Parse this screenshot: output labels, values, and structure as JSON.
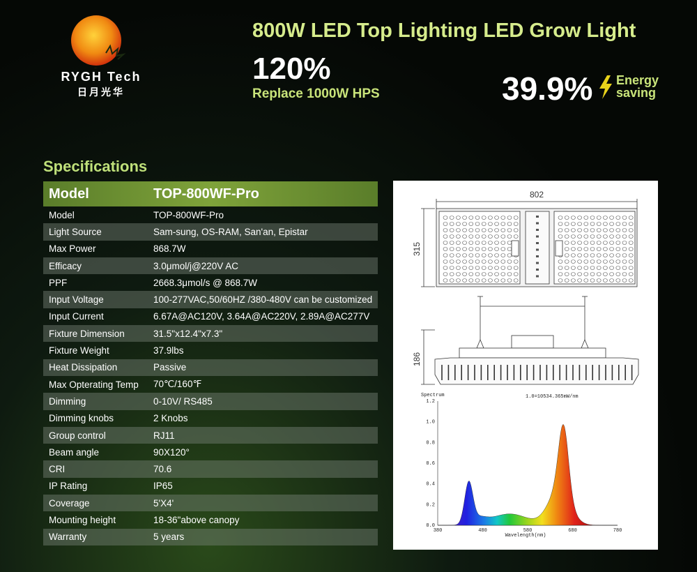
{
  "brand": {
    "name": "RYGH Tech",
    "name_cn": "日月光华"
  },
  "header": {
    "title": "800W LED Top Lighting LED Grow Light",
    "percent": "120%",
    "replace": "Replace 1000W HPS",
    "saving_value": "39.9%",
    "saving_label_1": "Energy",
    "saving_label_2": "saving"
  },
  "specs": {
    "section_title": "Specifications",
    "header": {
      "label": "Model",
      "value": "TOP-800WF-Pro"
    },
    "rows": [
      {
        "label": "Model",
        "value": "TOP-800WF-Pro"
      },
      {
        "label": "Light Source",
        "value": "Sam-sung, OS-RAM, San'an, Epistar"
      },
      {
        "label": "Max Power",
        "value": "868.7W"
      },
      {
        "label": "Efficacy",
        "value": "3.0μmol/j@220V AC"
      },
      {
        "label": "PPF",
        "value": "2668.3μmol/s @ 868.7W"
      },
      {
        "label": "Input Voltage",
        "value": "100-277VAC,50/60HZ /380-480V can be customized"
      },
      {
        "label": "Input Current",
        "value": "6.67A@AC120V, 3.64A@AC220V, 2.89A@AC277V"
      },
      {
        "label": "Fixture Dimension",
        "value": "31.5\"x12.4\"x7.3\""
      },
      {
        "label": "Fixture Weight",
        "value": "37.9lbs"
      },
      {
        "label": "Heat Dissipation",
        "value": "Passive"
      },
      {
        "label": "Max Opterating Temp",
        "value": "70℃/160℉"
      },
      {
        "label": "Dimming",
        "value": "0-10V/ RS485"
      },
      {
        "label": "Dimming knobs",
        "value": "2 Knobs"
      },
      {
        "label": "Group control",
        "value": "RJ11"
      },
      {
        "label": "Beam angle",
        "value": "90X120°"
      },
      {
        "label": "CRI",
        "value": "70.6"
      },
      {
        "label": "IP Rating",
        "value": "IP65"
      },
      {
        "label": "Coverage",
        "value": "5'X4'"
      },
      {
        "label": "Mounting height",
        "value": "18-36\"above canopy"
      },
      {
        "label": "Warranty",
        "value": "5 years"
      }
    ]
  },
  "drawing": {
    "width_dim": "802",
    "depth_dim": "315",
    "height_dim": "186"
  },
  "spectrum": {
    "title": "Spectrum",
    "note": "1.0=10534.365mW/nm",
    "xlabel": "Wavelength(nm)",
    "x_ticks": [
      "380",
      "480",
      "580",
      "680",
      "780"
    ],
    "y_ticks": [
      "0.0",
      "0.2",
      "0.4",
      "0.6",
      "0.8",
      "1.0",
      "1.2"
    ]
  },
  "colors": {
    "accent": "#d6ec8c",
    "header_bar": "#6f9632",
    "row_alt": "#5e655e"
  }
}
